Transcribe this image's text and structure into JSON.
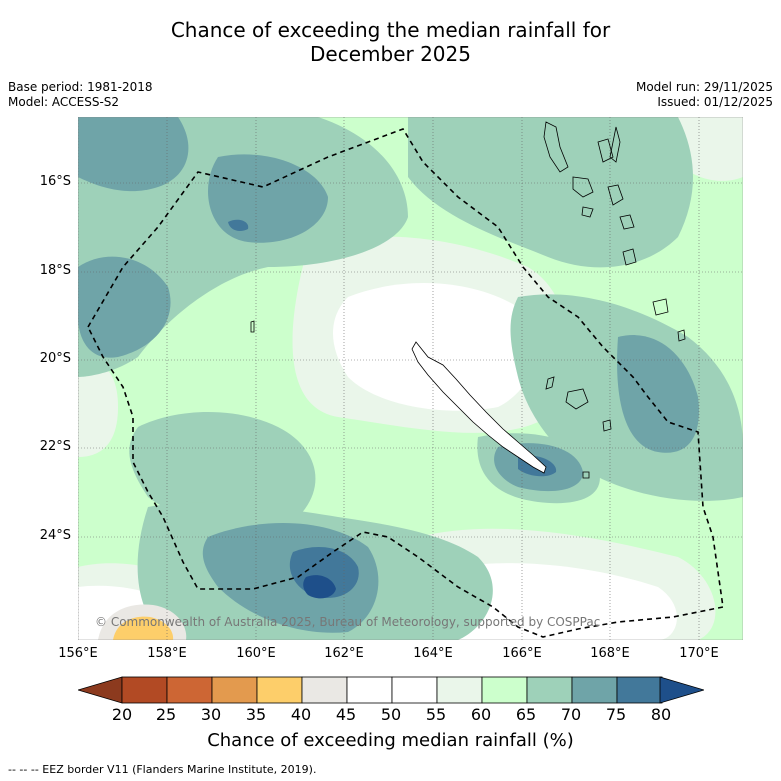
{
  "title": {
    "line1": "Chance of exceeding the median rainfall for",
    "line2": "December 2025"
  },
  "meta": {
    "base_period": "Base period: 1981-2018",
    "model": "Model: ACCESS-S2",
    "model_run": "Model run: 29/11/2025",
    "issued": "Issued: 01/12/2025"
  },
  "map": {
    "lat_ticks": [
      "16°S",
      "18°S",
      "20°S",
      "22°S",
      "24°S"
    ],
    "lon_ticks": [
      "156°E",
      "158°E",
      "160°E",
      "162°E",
      "164°E",
      "166°E",
      "168°E",
      "170°E"
    ],
    "copyright": "© Commonwealth of Australia 2025, Bureau of Meteorology, supported by COSPPac"
  },
  "colorbar": {
    "ticks": [
      "20",
      "25",
      "30",
      "35",
      "40",
      "45",
      "50",
      "55",
      "60",
      "65",
      "70",
      "75",
      "80"
    ],
    "colors": [
      "#b24a24",
      "#cd6634",
      "#e39a4e",
      "#fdce6a",
      "#eae8e4",
      "#ffffff",
      "#ffffff",
      "#eaf6ea",
      "#ccffcc",
      "#9ed1b9",
      "#6fa4a8",
      "#42789a"
    ],
    "under_color": "#8c3a1e",
    "over_color": "#1e4f8a",
    "label": "Chance of exceeding median rainfall (%)"
  },
  "legend": {
    "eez": "--  --  -- EEZ border V11 (Flanders Marine Institute, 2019)."
  }
}
